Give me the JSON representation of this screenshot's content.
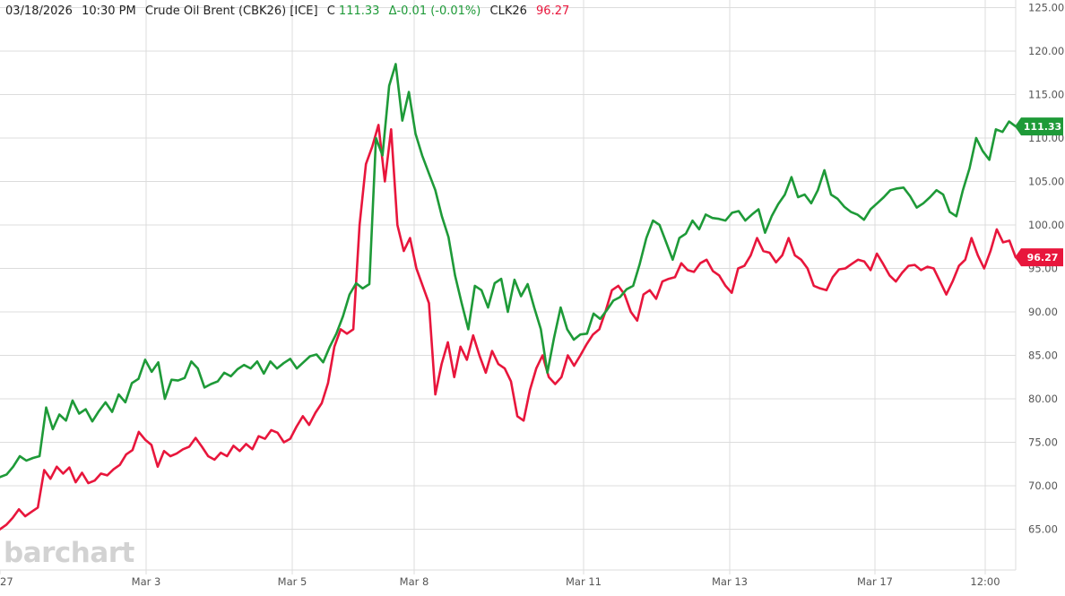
{
  "header": {
    "datetime": "03/18/2026",
    "time": "10:30 PM",
    "symbol_desc": "Crude Oil Brent (CBK26) [ICE]",
    "close_prefix": "C",
    "close_value": "111.33",
    "change": "Δ-0.01 (-0.01%)",
    "compare_symbol": "CLK26",
    "compare_value": "96.27"
  },
  "logo_text": "barchart",
  "colors": {
    "brent": "#1e9a38",
    "wti": "#e8163c",
    "header_positive": "#1e9a38",
    "header_negative": "#e8163c"
  },
  "chart_data": {
    "type": "line",
    "y_axis_side": "right",
    "ylim": [
      60,
      126
    ],
    "grid": true,
    "y_ticks": [
      "65.00",
      "70.00",
      "75.00",
      "80.00",
      "85.00",
      "90.00",
      "95.00",
      "100.00",
      "105.00",
      "110.00",
      "115.00",
      "120.00",
      "125.00"
    ],
    "x_ticks": [
      "27",
      "Mar 3",
      "Mar 5",
      "Mar 8",
      "Mar 11",
      "Mar 13",
      "Mar 17",
      "12:00"
    ],
    "series": [
      {
        "name": "CBK26",
        "last_label": "111.33",
        "values": [
          71.0,
          71.3,
          72.2,
          73.4,
          72.9,
          73.2,
          73.4,
          79.0,
          76.5,
          78.2,
          77.5,
          79.8,
          78.3,
          78.8,
          77.4,
          78.6,
          79.6,
          78.5,
          80.5,
          79.6,
          81.8,
          82.3,
          84.5,
          83.1,
          84.2,
          80.0,
          82.2,
          82.1,
          82.4,
          84.3,
          83.5,
          81.3,
          81.7,
          82.0,
          83.0,
          82.6,
          83.4,
          83.9,
          83.5,
          84.3,
          82.9,
          84.3,
          83.5,
          84.1,
          84.6,
          83.5,
          84.2,
          84.9,
          85.1,
          84.2,
          86.0,
          87.5,
          89.5,
          92.0,
          93.3,
          92.7,
          93.2,
          110.0,
          108.0,
          116.0,
          118.5,
          112.0,
          115.3,
          110.5,
          108.0,
          106.0,
          104.0,
          101.0,
          98.6,
          94.2,
          91.0,
          88.0,
          93.0,
          92.5,
          90.5,
          93.3,
          93.8,
          90.0,
          93.7,
          91.8,
          93.2,
          90.5,
          88.0,
          83.0,
          87.0,
          90.5,
          88.0,
          86.8,
          87.4,
          87.5,
          89.8,
          89.2,
          90.2,
          91.3,
          91.7,
          92.6,
          93.0,
          95.5,
          98.5,
          100.5,
          100.0,
          98.0,
          96.0,
          98.5,
          99.0,
          100.5,
          99.5,
          101.2,
          100.8,
          100.7,
          100.5,
          101.4,
          101.6,
          100.5,
          101.2,
          101.8,
          99.1,
          101.0,
          102.4,
          103.5,
          105.5,
          103.2,
          103.5,
          102.5,
          104.0,
          106.3,
          103.5,
          103.0,
          102.1,
          101.5,
          101.2,
          100.6,
          101.8,
          102.5,
          103.2,
          104.0,
          104.2,
          104.3,
          103.3,
          102.0,
          102.5,
          103.2,
          104.0,
          103.5,
          101.5,
          101.0,
          104.0,
          106.5,
          110.0,
          108.5,
          107.5,
          111.0,
          110.7,
          111.9,
          111.33
        ]
      },
      {
        "name": "CLK26",
        "last_label": "96.27",
        "values": [
          65.0,
          65.5,
          66.3,
          67.3,
          66.5,
          67.0,
          67.5,
          71.8,
          70.8,
          72.2,
          71.4,
          72.1,
          70.4,
          71.5,
          70.3,
          70.6,
          71.4,
          71.2,
          71.9,
          72.4,
          73.6,
          74.1,
          76.2,
          75.3,
          74.7,
          72.2,
          74.0,
          73.4,
          73.7,
          74.2,
          74.5,
          75.5,
          74.5,
          73.4,
          73.0,
          73.8,
          73.4,
          74.6,
          74.0,
          74.8,
          74.2,
          75.7,
          75.4,
          76.4,
          76.1,
          75.0,
          75.4,
          76.8,
          78.0,
          77.0,
          78.4,
          79.5,
          81.8,
          86.0,
          88.0,
          87.5,
          88.0,
          100.0,
          107.0,
          109.0,
          111.5,
          105.0,
          111.0,
          100.0,
          97.0,
          98.5,
          95.0,
          93.0,
          91.0,
          80.5,
          84.0,
          86.5,
          82.5,
          86.0,
          84.5,
          87.3,
          85.0,
          83.0,
          85.5,
          84.0,
          83.5,
          82.0,
          78.0,
          77.5,
          81.0,
          83.5,
          85.0,
          82.5,
          81.7,
          82.5,
          85.0,
          83.8,
          85.0,
          86.3,
          87.4,
          88.0,
          90.1,
          92.5,
          93.0,
          92.0,
          90.0,
          89.0,
          92.0,
          92.5,
          91.5,
          93.5,
          93.8,
          94.0,
          95.6,
          94.8,
          94.6,
          95.6,
          96.0,
          94.7,
          94.2,
          93.0,
          92.2,
          95.0,
          95.3,
          96.5,
          98.5,
          97.0,
          96.8,
          95.7,
          96.5,
          98.5,
          96.5,
          96.0,
          95.0,
          93.0,
          92.7,
          92.5,
          94.0,
          94.9,
          95.0,
          95.5,
          96.0,
          95.8,
          94.8,
          96.7,
          95.5,
          94.2,
          93.5,
          94.5,
          95.3,
          95.4,
          94.8,
          95.2,
          95.0,
          93.5,
          92.0,
          93.5,
          95.3,
          96.0,
          98.5,
          96.5,
          95.0,
          97.0,
          99.5,
          98.0,
          98.2,
          96.27
        ]
      }
    ]
  }
}
